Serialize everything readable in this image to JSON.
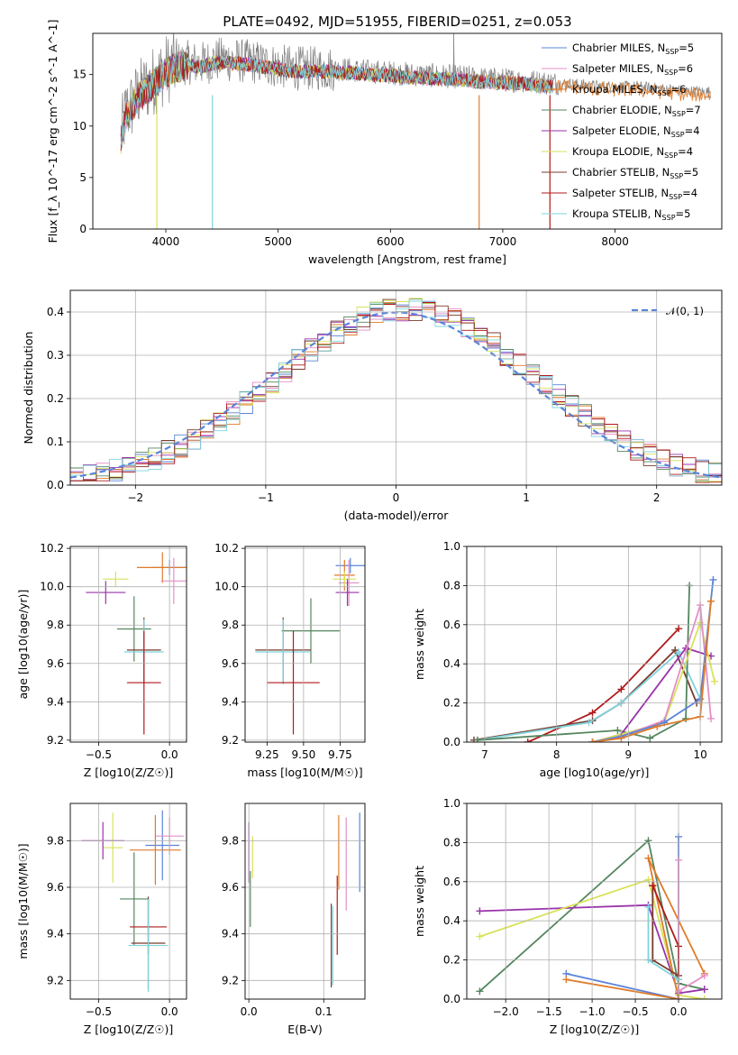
{
  "chart_data": [
    {
      "id": "spectrum",
      "type": "line",
      "title": "PLATE=0492, MJD=51955, FIBERID=0251, z=0.053",
      "xlabel": "wavelength [Angstrom, rest frame]",
      "ylabel": "Flux [f_λ 10^-17 erg cm^-2 s^-1 A^-1]",
      "xlim": [
        3350,
        8950
      ],
      "ylim": [
        0,
        19
      ],
      "xticks": [
        4000,
        5000,
        6000,
        7000,
        8000
      ],
      "yticks": [
        0,
        5,
        10,
        15
      ],
      "grid": false,
      "legend_position": "top-right",
      "observed_spectrum": {
        "color": "#808080",
        "x": [
          3600,
          3650,
          3700,
          3750,
          3800,
          3850,
          3900,
          3950,
          4000,
          4100,
          4200,
          4300,
          4400,
          4500,
          4600,
          4700,
          4800,
          4900,
          5000,
          5200,
          5400,
          5600,
          5800,
          6000,
          6200,
          6400,
          6600,
          6800,
          7000,
          7200,
          7400,
          7600,
          7800,
          8000,
          8200,
          8400,
          8600,
          8800
        ],
        "y": [
          9,
          11.5,
          12,
          13,
          13.5,
          14,
          14.5,
          15,
          15.5,
          16,
          16.2,
          16,
          16.3,
          16.5,
          16.4,
          16.3,
          16.2,
          16.0,
          15.8,
          15.6,
          15.6,
          15.5,
          15.3,
          15.2,
          15.0,
          14.9,
          14.8,
          14.6,
          14.5,
          14.4,
          14.2,
          14.1,
          13.9,
          13.8,
          13.8,
          13.6,
          13.4,
          13.3
        ]
      },
      "model_wavelength_range": [
        3600,
        7450
      ],
      "series": [
        {
          "name": "Chabrier MILES, N_SSP=5",
          "color": "#5b84d8"
        },
        {
          "name": "Salpeter MILES, N_SSP=6",
          "color": "#e48fc7"
        },
        {
          "name": "Kroupa MILES, N_SSP=6",
          "color": "#e07b29"
        },
        {
          "name": "Chabrier ELODIE, N_SSP=7",
          "color": "#54865f"
        },
        {
          "name": "Salpeter ELODIE, N_SSP=4",
          "color": "#9932aa"
        },
        {
          "name": "Kroupa ELODIE, N_SSP=4",
          "color": "#d8e25a"
        },
        {
          "name": "Chabrier STELIB, N_SSP=5",
          "color": "#7a3b2e"
        },
        {
          "name": "Salpeter STELIB, N_SSP=4",
          "color": "#b01a1a"
        },
        {
          "name": "Kroupa STELIB, N_SSP=5",
          "color": "#7fd4de"
        }
      ]
    },
    {
      "id": "residuals",
      "type": "line",
      "xlabel": "(data-model)/error",
      "ylabel": "Normed distribution",
      "xlim": [
        -2.5,
        2.5
      ],
      "ylim": [
        0,
        0.45
      ],
      "xticks": [
        -2,
        -1,
        0,
        1,
        2
      ],
      "yticks": [
        0.0,
        0.1,
        0.2,
        0.3,
        0.4
      ],
      "grid": true,
      "legend_position": "top-right",
      "legend_label": "𝒩(0, 1)",
      "gaussian_color": "#5b84d8",
      "histogram_colors": [
        "#5b84d8",
        "#e48fc7",
        "#e07b29",
        "#54865f",
        "#9932aa",
        "#d8e25a",
        "#7a3b2e",
        "#b01a1a",
        "#7fd4de"
      ]
    },
    {
      "id": "age_vs_Z",
      "type": "scatter",
      "xlabel": "Z [log10(Z/Z☉)]",
      "ylabel": "age [log10(age/yr)]",
      "xlim": [
        -0.7,
        0.12
      ],
      "ylim": [
        9.19,
        10.21
      ],
      "xticks": [
        -0.5,
        0.0
      ],
      "yticks": [
        9.2,
        9.4,
        9.6,
        9.8,
        10.0,
        10.2
      ],
      "grid": true,
      "points": [
        {
          "color": "#5b84d8",
          "x": 0.0,
          "xerr": 0.12,
          "y": 10.1,
          "yerr": 0.04
        },
        {
          "color": "#e07b29",
          "x": -0.05,
          "xerr": 0.18,
          "y": 10.1,
          "yerr": 0.08
        },
        {
          "color": "#e48fc7",
          "x": 0.03,
          "xerr": 0.09,
          "y": 10.03,
          "yerr": 0.12
        },
        {
          "color": "#d8e25a",
          "x": -0.38,
          "xerr": 0.09,
          "y": 10.04,
          "yerr": 0.04
        },
        {
          "color": "#9932aa",
          "x": -0.45,
          "xerr": 0.14,
          "y": 9.97,
          "yerr": 0.06
        },
        {
          "color": "#54865f",
          "x": -0.25,
          "xerr": 0.12,
          "y": 9.78,
          "yerr": 0.17
        },
        {
          "color": "#7a3b2e",
          "x": -0.18,
          "xerr": 0.12,
          "y": 9.67,
          "yerr": 0.17
        },
        {
          "color": "#7fd4de",
          "x": -0.18,
          "xerr": 0.14,
          "y": 9.66,
          "yerr": 0.17
        },
        {
          "color": "#b01a1a",
          "x": -0.18,
          "xerr": 0.12,
          "y": 9.5,
          "yerr": 0.27
        }
      ]
    },
    {
      "id": "age_vs_mass",
      "type": "scatter",
      "xlabel": "mass [log10(M/M☉)]",
      "ylabel": "",
      "xlim": [
        9.1,
        9.92
      ],
      "ylim": [
        9.19,
        10.21
      ],
      "xticks": [
        9.25,
        9.5,
        9.75
      ],
      "yticks": [
        9.2,
        9.4,
        9.6,
        9.8,
        10.0,
        10.2
      ],
      "grid": true,
      "points": [
        {
          "color": "#5b84d8",
          "x": 9.82,
          "xerr": 0.1,
          "y": 10.11,
          "yerr": 0.04
        },
        {
          "color": "#e07b29",
          "x": 9.78,
          "xerr": 0.07,
          "y": 10.06,
          "yerr": 0.08
        },
        {
          "color": "#e48fc7",
          "x": 9.81,
          "xerr": 0.07,
          "y": 10.02,
          "yerr": 0.12
        },
        {
          "color": "#d8e25a",
          "x": 9.78,
          "xerr": 0.08,
          "y": 10.04,
          "yerr": 0.04
        },
        {
          "color": "#9932aa",
          "x": 9.8,
          "xerr": 0.08,
          "y": 9.97,
          "yerr": 0.07
        },
        {
          "color": "#54865f",
          "x": 9.55,
          "xerr": 0.2,
          "y": 9.77,
          "yerr": 0.17
        },
        {
          "color": "#7a3b2e",
          "x": 9.36,
          "xerr": 0.19,
          "y": 9.67,
          "yerr": 0.17
        },
        {
          "color": "#7fd4de",
          "x": 9.36,
          "xerr": 0.19,
          "y": 9.66,
          "yerr": 0.17
        },
        {
          "color": "#b01a1a",
          "x": 9.43,
          "xerr": 0.18,
          "y": 9.5,
          "yerr": 0.27
        }
      ]
    },
    {
      "id": "weight_vs_age",
      "type": "line",
      "xlabel": "age [log10(age/yr)]",
      "ylabel": "mass weight",
      "xlim": [
        6.75,
        10.3
      ],
      "ylim": [
        0,
        1.0
      ],
      "xticks": [
        7,
        8,
        9,
        10
      ],
      "yticks": [
        0.0,
        0.2,
        0.4,
        0.6,
        0.8,
        1.0
      ],
      "grid": true,
      "series": [
        {
          "color": "#b01a1a",
          "x": [
            7.6,
            8.5,
            8.9,
            9.7
          ],
          "y": [
            0.0,
            0.15,
            0.27,
            0.58
          ]
        },
        {
          "color": "#7a3b2e",
          "x": [
            6.85,
            8.5,
            8.9,
            9.65,
            9.95
          ],
          "y": [
            0.01,
            0.11,
            0.2,
            0.47,
            0.2
          ]
        },
        {
          "color": "#7fd4de",
          "x": [
            6.9,
            8.45,
            8.9,
            9.7,
            10.0
          ],
          "y": [
            0.01,
            0.1,
            0.2,
            0.46,
            0.22
          ]
        },
        {
          "color": "#54865f",
          "x": [
            6.9,
            8.85,
            9.3,
            9.8,
            9.85
          ],
          "y": [
            0.01,
            0.06,
            0.02,
            0.12,
            0.8
          ]
        },
        {
          "color": "#9932aa",
          "x": [
            8.5,
            8.9,
            9.8,
            10.15
          ],
          "y": [
            0.0,
            0.04,
            0.48,
            0.44
          ]
        },
        {
          "color": "#d8e25a",
          "x": [
            8.5,
            8.9,
            9.5,
            10.0,
            10.2
          ],
          "y": [
            0.0,
            0.04,
            0.1,
            0.61,
            0.31
          ]
        },
        {
          "color": "#e48fc7",
          "x": [
            8.5,
            8.9,
            9.5,
            10.0,
            10.15
          ],
          "y": [
            0.0,
            0.03,
            0.11,
            0.7,
            0.12
          ]
        },
        {
          "color": "#5b84d8",
          "x": [
            8.5,
            8.9,
            9.5,
            10.0,
            10.18
          ],
          "y": [
            0.0,
            0.03,
            0.1,
            0.22,
            0.83
          ]
        },
        {
          "color": "#e07b29",
          "x": [
            8.5,
            8.9,
            9.4,
            10.0,
            10.15
          ],
          "y": [
            0.0,
            0.02,
            0.08,
            0.13,
            0.72
          ]
        }
      ]
    },
    {
      "id": "mass_vs_Z",
      "type": "scatter",
      "xlabel": "Z [log10(Z/Z☉)]",
      "ylabel": "mass [log10(M/M☉)]",
      "xlim": [
        -0.7,
        0.12
      ],
      "ylim": [
        9.12,
        9.96
      ],
      "xticks": [
        -0.5,
        0.0
      ],
      "yticks": [
        9.2,
        9.4,
        9.6,
        9.8
      ],
      "grid": true,
      "points": [
        {
          "color": "#5b84d8",
          "x": -0.05,
          "xerr": 0.12,
          "y": 9.78,
          "yerr": 0.15
        },
        {
          "color": "#e48fc7",
          "x": 0.0,
          "xerr": 0.1,
          "y": 9.82,
          "yerr": 0.08
        },
        {
          "color": "#e07b29",
          "x": -0.1,
          "xerr": 0.18,
          "y": 9.76,
          "yerr": 0.15
        },
        {
          "color": "#d8e25a",
          "x": -0.4,
          "xerr": 0.07,
          "y": 9.77,
          "yerr": 0.15
        },
        {
          "color": "#9932aa",
          "x": -0.47,
          "xerr": 0.15,
          "y": 9.8,
          "yerr": 0.08
        },
        {
          "color": "#54865f",
          "x": -0.25,
          "xerr": 0.1,
          "y": 9.55,
          "yerr": 0.2
        },
        {
          "color": "#b01a1a",
          "x": -0.15,
          "xerr": 0.13,
          "y": 9.43,
          "yerr": 0.12
        },
        {
          "color": "#7a3b2e",
          "x": -0.15,
          "xerr": 0.12,
          "y": 9.36,
          "yerr": 0.2
        },
        {
          "color": "#7fd4de",
          "x": -0.15,
          "xerr": 0.14,
          "y": 9.35,
          "yerr": 0.2
        }
      ]
    },
    {
      "id": "mass_vs_EBV",
      "type": "scatter",
      "xlabel": "E(B-V)",
      "ylabel": "",
      "xlim": [
        -0.005,
        0.155
      ],
      "ylim": [
        9.12,
        9.96
      ],
      "xticks": [
        0.0,
        0.1
      ],
      "yticks": [
        9.2,
        9.4,
        9.6,
        9.8
      ],
      "grid": true,
      "points": [
        {
          "color": "#9932aa",
          "x": 0.0,
          "y": 9.75,
          "yerr": 0.13
        },
        {
          "color": "#d8e25a",
          "x": 0.005,
          "y": 9.73,
          "yerr": 0.09
        },
        {
          "color": "#54865f",
          "x": 0.002,
          "y": 9.55,
          "yerr": 0.12
        },
        {
          "color": "#5b84d8",
          "x": 0.148,
          "y": 9.75,
          "yerr": 0.17
        },
        {
          "color": "#e48fc7",
          "x": 0.13,
          "y": 9.7,
          "yerr": 0.2
        },
        {
          "color": "#e07b29",
          "x": 0.12,
          "y": 9.75,
          "yerr": 0.16
        },
        {
          "color": "#b01a1a",
          "x": 0.118,
          "y": 9.48,
          "yerr": 0.17
        },
        {
          "color": "#7a3b2e",
          "x": 0.11,
          "y": 9.35,
          "yerr": 0.18
        },
        {
          "color": "#7fd4de",
          "x": 0.112,
          "y": 9.35,
          "yerr": 0.17
        }
      ]
    },
    {
      "id": "weight_vs_Z",
      "type": "line",
      "xlabel": "Z [log10(Z/Z☉)]",
      "ylabel": "mass weight",
      "xlim": [
        -2.45,
        0.5
      ],
      "ylim": [
        0,
        1.0
      ],
      "xticks": [
        -2.0,
        -1.5,
        -1.0,
        -0.5,
        0.0
      ],
      "yticks": [
        0.0,
        0.2,
        0.4,
        0.6,
        0.8,
        1.0
      ],
      "grid": true,
      "series": [
        {
          "color": "#54865f",
          "x": [
            -2.3,
            -0.35,
            0.0,
            0.3
          ],
          "y": [
            0.04,
            0.81,
            0.08,
            0.05
          ]
        },
        {
          "color": "#9932aa",
          "x": [
            -2.3,
            -0.35,
            0.0,
            0.3
          ],
          "y": [
            0.45,
            0.48,
            0.03,
            0.05
          ]
        },
        {
          "color": "#d8e25a",
          "x": [
            -2.3,
            -0.35,
            0.0,
            0.3
          ],
          "y": [
            0.32,
            0.61,
            0.02,
            0.0
          ]
        },
        {
          "color": "#5b84d8",
          "x": [
            -1.3,
            0.0,
            0.0
          ],
          "y": [
            0.13,
            0.0,
            0.83
          ]
        },
        {
          "color": "#e07b29",
          "x": [
            -1.3,
            0.0,
            -0.35,
            0.3
          ],
          "y": [
            0.1,
            0.0,
            0.72,
            0.13
          ]
        },
        {
          "color": "#e48fc7",
          "x": [
            0.0,
            0.0,
            0.3
          ],
          "y": [
            0.71,
            0.04,
            0.12
          ]
        },
        {
          "color": "#7a3b2e",
          "x": [
            -0.3,
            -0.3,
            0.0
          ],
          "y": [
            0.58,
            0.2,
            0.12
          ]
        },
        {
          "color": "#b01a1a",
          "x": [
            -0.3,
            0.0,
            0.0
          ],
          "y": [
            0.58,
            0.27,
            0.1
          ]
        },
        {
          "color": "#7fd4de",
          "x": [
            -0.35,
            -0.35,
            0.0
          ],
          "y": [
            0.47,
            0.2,
            0.1
          ]
        }
      ]
    }
  ]
}
